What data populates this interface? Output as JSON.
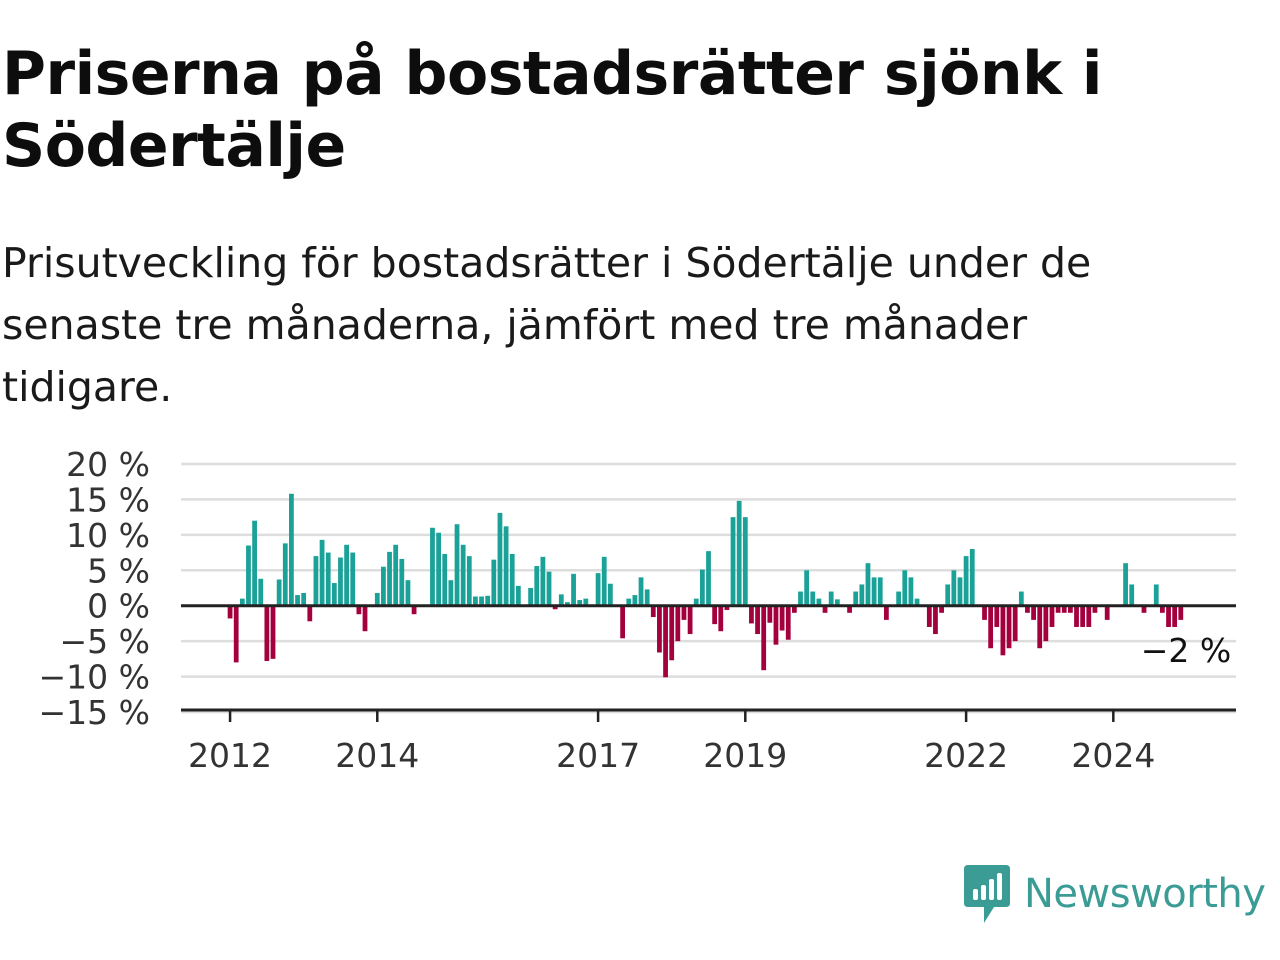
{
  "title": "Priserna på bostadsrätter sjönk i Södertälje",
  "subtitle": "Prisutveckling för bostadsrätter i Södertälje under de senaste tre månaderna, jämfört med tre månader tidigare.",
  "brand": {
    "name": "Newsworthy",
    "icon": "newsworthy-logo-icon"
  },
  "colors": {
    "positive": "#1aa198",
    "negative": "#a3003d",
    "grid": "#dddddd",
    "axis": "#222222",
    "brand": "#3a9c94"
  },
  "chart_data": {
    "type": "bar",
    "title": "",
    "xlabel": "",
    "ylabel": "",
    "ylim": [
      -15,
      20
    ],
    "y_ticks": [
      20,
      15,
      10,
      5,
      0,
      -5,
      -10,
      -15
    ],
    "y_tick_labels": [
      "20 %",
      "15 %",
      "10 %",
      "5 %",
      "0 %",
      "−5 %",
      "−10 %",
      "−15 %"
    ],
    "x_ticks": [
      {
        "x": "2012-01",
        "label": "2012"
      },
      {
        "x": "2014-01",
        "label": "2014"
      },
      {
        "x": "2017-01",
        "label": "2017"
      },
      {
        "x": "2019-01",
        "label": "2019"
      },
      {
        "x": "2022-01",
        "label": "2022"
      },
      {
        "x": "2024-01",
        "label": "2024"
      }
    ],
    "x_start": "2011-05",
    "x_end": "2025-09",
    "grid": true,
    "last_value_label": "−2 %",
    "series": [
      {
        "points": [
          {
            "x": "2012-01",
            "y": -1.8
          },
          {
            "x": "2012-02",
            "y": -8.0
          },
          {
            "x": "2012-03",
            "y": 1.0
          },
          {
            "x": "2012-04",
            "y": 8.5
          },
          {
            "x": "2012-05",
            "y": 12.0
          },
          {
            "x": "2012-06",
            "y": 3.8
          },
          {
            "x": "2012-07",
            "y": -7.8
          },
          {
            "x": "2012-08",
            "y": -7.5
          },
          {
            "x": "2012-09",
            "y": 3.7
          },
          {
            "x": "2012-10",
            "y": 8.8
          },
          {
            "x": "2012-11",
            "y": 15.8
          },
          {
            "x": "2012-12",
            "y": 1.5
          },
          {
            "x": "2013-01",
            "y": 1.8
          },
          {
            "x": "2013-02",
            "y": -2.2
          },
          {
            "x": "2013-03",
            "y": 7.0
          },
          {
            "x": "2013-04",
            "y": 9.3
          },
          {
            "x": "2013-05",
            "y": 7.5
          },
          {
            "x": "2013-06",
            "y": 3.2
          },
          {
            "x": "2013-07",
            "y": 6.8
          },
          {
            "x": "2013-08",
            "y": 8.6
          },
          {
            "x": "2013-09",
            "y": 7.5
          },
          {
            "x": "2013-10",
            "y": -1.2
          },
          {
            "x": "2013-11",
            "y": -3.6
          },
          {
            "x": "2013-12",
            "y": 0.1
          },
          {
            "x": "2014-01",
            "y": 1.8
          },
          {
            "x": "2014-02",
            "y": 5.5
          },
          {
            "x": "2014-03",
            "y": 7.6
          },
          {
            "x": "2014-04",
            "y": 8.6
          },
          {
            "x": "2014-05",
            "y": 6.6
          },
          {
            "x": "2014-06",
            "y": 3.6
          },
          {
            "x": "2014-07",
            "y": -1.2
          },
          {
            "x": "2014-08",
            "y": 0.1
          },
          {
            "x": "2014-09",
            "y": 0.1
          },
          {
            "x": "2014-10",
            "y": 11.0
          },
          {
            "x": "2014-11",
            "y": 10.3
          },
          {
            "x": "2014-12",
            "y": 7.3
          },
          {
            "x": "2015-01",
            "y": 3.6
          },
          {
            "x": "2015-02",
            "y": 11.5
          },
          {
            "x": "2015-03",
            "y": 8.6
          },
          {
            "x": "2015-04",
            "y": 7.0
          },
          {
            "x": "2015-05",
            "y": 1.3
          },
          {
            "x": "2015-06",
            "y": 1.3
          },
          {
            "x": "2015-07",
            "y": 1.4
          },
          {
            "x": "2015-08",
            "y": 6.5
          },
          {
            "x": "2015-09",
            "y": 13.1
          },
          {
            "x": "2015-10",
            "y": 11.2
          },
          {
            "x": "2015-11",
            "y": 7.3
          },
          {
            "x": "2015-12",
            "y": 2.8
          },
          {
            "x": "2016-01",
            "y": 0.1
          },
          {
            "x": "2016-02",
            "y": 2.5
          },
          {
            "x": "2016-03",
            "y": 5.6
          },
          {
            "x": "2016-04",
            "y": 6.9
          },
          {
            "x": "2016-05",
            "y": 4.8
          },
          {
            "x": "2016-06",
            "y": -0.5
          },
          {
            "x": "2016-07",
            "y": 1.6
          },
          {
            "x": "2016-08",
            "y": 0.5
          },
          {
            "x": "2016-09",
            "y": 4.5
          },
          {
            "x": "2016-10",
            "y": 0.8
          },
          {
            "x": "2016-11",
            "y": 1.0
          },
          {
            "x": "2016-12",
            "y": 0.1
          },
          {
            "x": "2017-01",
            "y": 4.6
          },
          {
            "x": "2017-02",
            "y": 6.9
          },
          {
            "x": "2017-03",
            "y": 3.1
          },
          {
            "x": "2017-04",
            "y": 0.1
          },
          {
            "x": "2017-05",
            "y": -4.6
          },
          {
            "x": "2017-06",
            "y": 1.0
          },
          {
            "x": "2017-07",
            "y": 1.5
          },
          {
            "x": "2017-08",
            "y": 4.0
          },
          {
            "x": "2017-09",
            "y": 2.3
          },
          {
            "x": "2017-10",
            "y": -1.6
          },
          {
            "x": "2017-11",
            "y": -6.6
          },
          {
            "x": "2017-12",
            "y": -10.1
          },
          {
            "x": "2018-01",
            "y": -7.7
          },
          {
            "x": "2018-02",
            "y": -5.0
          },
          {
            "x": "2018-03",
            "y": -2.0
          },
          {
            "x": "2018-04",
            "y": -4.0
          },
          {
            "x": "2018-05",
            "y": 1.0
          },
          {
            "x": "2018-06",
            "y": 5.1
          },
          {
            "x": "2018-07",
            "y": 7.7
          },
          {
            "x": "2018-08",
            "y": -2.6
          },
          {
            "x": "2018-09",
            "y": -3.6
          },
          {
            "x": "2018-10",
            "y": -0.6
          },
          {
            "x": "2018-11",
            "y": 12.5
          },
          {
            "x": "2018-12",
            "y": 14.8
          },
          {
            "x": "2019-01",
            "y": 12.5
          },
          {
            "x": "2019-02",
            "y": -2.5
          },
          {
            "x": "2019-03",
            "y": -4.0
          },
          {
            "x": "2019-04",
            "y": -9.1
          },
          {
            "x": "2019-05",
            "y": -2.4
          },
          {
            "x": "2019-06",
            "y": -5.5
          },
          {
            "x": "2019-07",
            "y": -3.5
          },
          {
            "x": "2019-08",
            "y": -4.8
          },
          {
            "x": "2019-09",
            "y": -1.0
          },
          {
            "x": "2019-10",
            "y": 2.0
          },
          {
            "x": "2019-11",
            "y": 5.0
          },
          {
            "x": "2019-12",
            "y": 2.0
          },
          {
            "x": "2020-01",
            "y": 1.0
          },
          {
            "x": "2020-02",
            "y": -1.0
          },
          {
            "x": "2020-03",
            "y": 2.0
          },
          {
            "x": "2020-04",
            "y": 0.9
          },
          {
            "x": "2020-05",
            "y": 0.1
          },
          {
            "x": "2020-06",
            "y": -1.0
          },
          {
            "x": "2020-07",
            "y": 2.0
          },
          {
            "x": "2020-08",
            "y": 3.0
          },
          {
            "x": "2020-09",
            "y": 6.0
          },
          {
            "x": "2020-10",
            "y": 4.0
          },
          {
            "x": "2020-11",
            "y": 4.0
          },
          {
            "x": "2020-12",
            "y": -2.0
          },
          {
            "x": "2021-01",
            "y": 0.1
          },
          {
            "x": "2021-02",
            "y": 2.0
          },
          {
            "x": "2021-03",
            "y": 5.0
          },
          {
            "x": "2021-04",
            "y": 4.0
          },
          {
            "x": "2021-05",
            "y": 1.0
          },
          {
            "x": "2021-06",
            "y": 0.1
          },
          {
            "x": "2021-07",
            "y": -3.0
          },
          {
            "x": "2021-08",
            "y": -4.0
          },
          {
            "x": "2021-09",
            "y": -1.0
          },
          {
            "x": "2021-10",
            "y": 3.0
          },
          {
            "x": "2021-11",
            "y": 5.0
          },
          {
            "x": "2021-12",
            "y": 4.0
          },
          {
            "x": "2022-01",
            "y": 7.0
          },
          {
            "x": "2022-02",
            "y": 8.0
          },
          {
            "x": "2022-03",
            "y": 0.1
          },
          {
            "x": "2022-04",
            "y": -2.0
          },
          {
            "x": "2022-05",
            "y": -6.0
          },
          {
            "x": "2022-06",
            "y": -3.0
          },
          {
            "x": "2022-07",
            "y": -7.0
          },
          {
            "x": "2022-08",
            "y": -6.0
          },
          {
            "x": "2022-09",
            "y": -5.0
          },
          {
            "x": "2022-10",
            "y": 2.0
          },
          {
            "x": "2022-11",
            "y": -1.0
          },
          {
            "x": "2022-12",
            "y": -2.0
          },
          {
            "x": "2023-01",
            "y": -6.0
          },
          {
            "x": "2023-02",
            "y": -5.0
          },
          {
            "x": "2023-03",
            "y": -3.0
          },
          {
            "x": "2023-04",
            "y": -1.0
          },
          {
            "x": "2023-05",
            "y": -1.0
          },
          {
            "x": "2023-06",
            "y": -1.0
          },
          {
            "x": "2023-07",
            "y": -3.0
          },
          {
            "x": "2023-08",
            "y": -3.0
          },
          {
            "x": "2023-09",
            "y": -3.0
          },
          {
            "x": "2023-10",
            "y": -1.0
          },
          {
            "x": "2023-11",
            "y": 0.1
          },
          {
            "x": "2023-12",
            "y": -2.0
          },
          {
            "x": "2024-01",
            "y": 0.1
          },
          {
            "x": "2024-02",
            "y": 0.1
          },
          {
            "x": "2024-03",
            "y": 6.0
          },
          {
            "x": "2024-04",
            "y": 3.0
          },
          {
            "x": "2024-05",
            "y": 0.1
          },
          {
            "x": "2024-06",
            "y": -1.0
          },
          {
            "x": "2024-07",
            "y": 0.1
          },
          {
            "x": "2024-08",
            "y": 3.0
          },
          {
            "x": "2024-09",
            "y": -1.0
          },
          {
            "x": "2024-10",
            "y": -3.0
          },
          {
            "x": "2024-11",
            "y": -3.0
          },
          {
            "x": "2024-12",
            "y": -2.0
          }
        ]
      }
    ]
  }
}
